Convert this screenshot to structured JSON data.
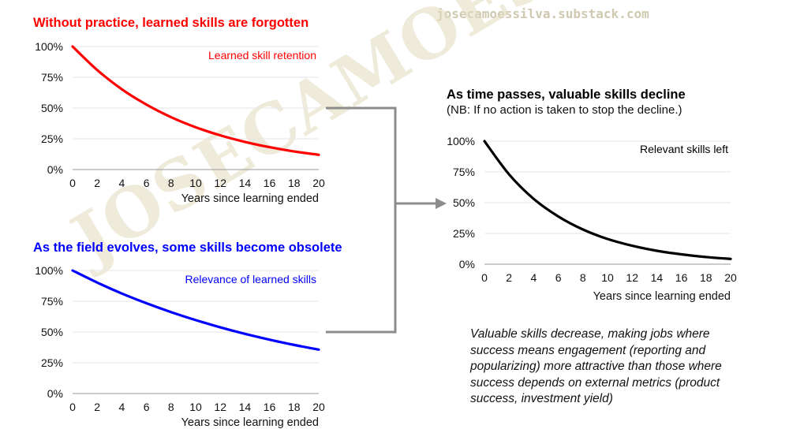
{
  "watermark": {
    "url": "josecamoessilva.substack.com",
    "diagonal": "JOSECAMOESSILVA"
  },
  "colors": {
    "retention": "#ff0000",
    "relevance": "#0000ff",
    "combined": "#000000",
    "connector": "#8c8c8c",
    "grid": "#e5e5e5"
  },
  "panels": {
    "top_left": {
      "title": "Without practice, learned skills are forgotten"
    },
    "bottom_left": {
      "title": "As the field evolves, some skills become obsolete"
    },
    "right": {
      "title": "As time passes, valuable skills decline",
      "subtitle": "(NB: If no action is taken to stop the decline.)"
    }
  },
  "conclusion": "Valuable skills decrease, making jobs where success means engagement (reporting and popularizing) more attractive than those where success depends on external metrics (product success, investment yield)",
  "chart_data": [
    {
      "type": "line",
      "legend": "Learned skill retention",
      "xlabel": "Years since learning ended",
      "x_ticks": [
        "0",
        "2",
        "4",
        "6",
        "8",
        "10",
        "12",
        "14",
        "16",
        "18",
        "20"
      ],
      "y_ticks": [
        "0%",
        "25%",
        "50%",
        "75%",
        "100%"
      ],
      "xlim": [
        0,
        20
      ],
      "ylim": [
        0,
        100
      ],
      "x": [
        0,
        2,
        4,
        6,
        8,
        10,
        12,
        14,
        16,
        18,
        20
      ],
      "y": [
        100,
        80.9,
        65.3,
        52.8,
        42.6,
        34.4,
        27.8,
        22.5,
        18.2,
        14.7,
        12.0
      ]
    },
    {
      "type": "line",
      "legend": "Relevance of learned skills",
      "xlabel": "Years since learning ended",
      "x_ticks": [
        "0",
        "2",
        "4",
        "6",
        "8",
        "10",
        "12",
        "14",
        "16",
        "18",
        "20"
      ],
      "y_ticks": [
        "0%",
        "25%",
        "50%",
        "75%",
        "100%"
      ],
      "xlim": [
        0,
        20
      ],
      "ylim": [
        0,
        100
      ],
      "x": [
        0,
        2,
        4,
        6,
        8,
        10,
        12,
        14,
        16,
        18,
        20
      ],
      "y": [
        100,
        90.2,
        81.3,
        73.4,
        66.2,
        59.7,
        53.8,
        48.5,
        43.8,
        39.5,
        35.7
      ]
    },
    {
      "type": "line",
      "legend": "Relevant skills left",
      "xlabel": "Years since learning ended",
      "x_ticks": [
        "0",
        "2",
        "4",
        "6",
        "8",
        "10",
        "12",
        "14",
        "16",
        "18",
        "20"
      ],
      "y_ticks": [
        "0%",
        "25%",
        "50%",
        "75%",
        "100%"
      ],
      "xlim": [
        0,
        20
      ],
      "ylim": [
        0,
        100
      ],
      "x": [
        0,
        2,
        4,
        6,
        8,
        10,
        12,
        14,
        16,
        18,
        20
      ],
      "y": [
        100,
        73.0,
        53.1,
        38.8,
        28.2,
        20.5,
        15.0,
        10.9,
        8.0,
        5.8,
        4.3
      ]
    }
  ]
}
